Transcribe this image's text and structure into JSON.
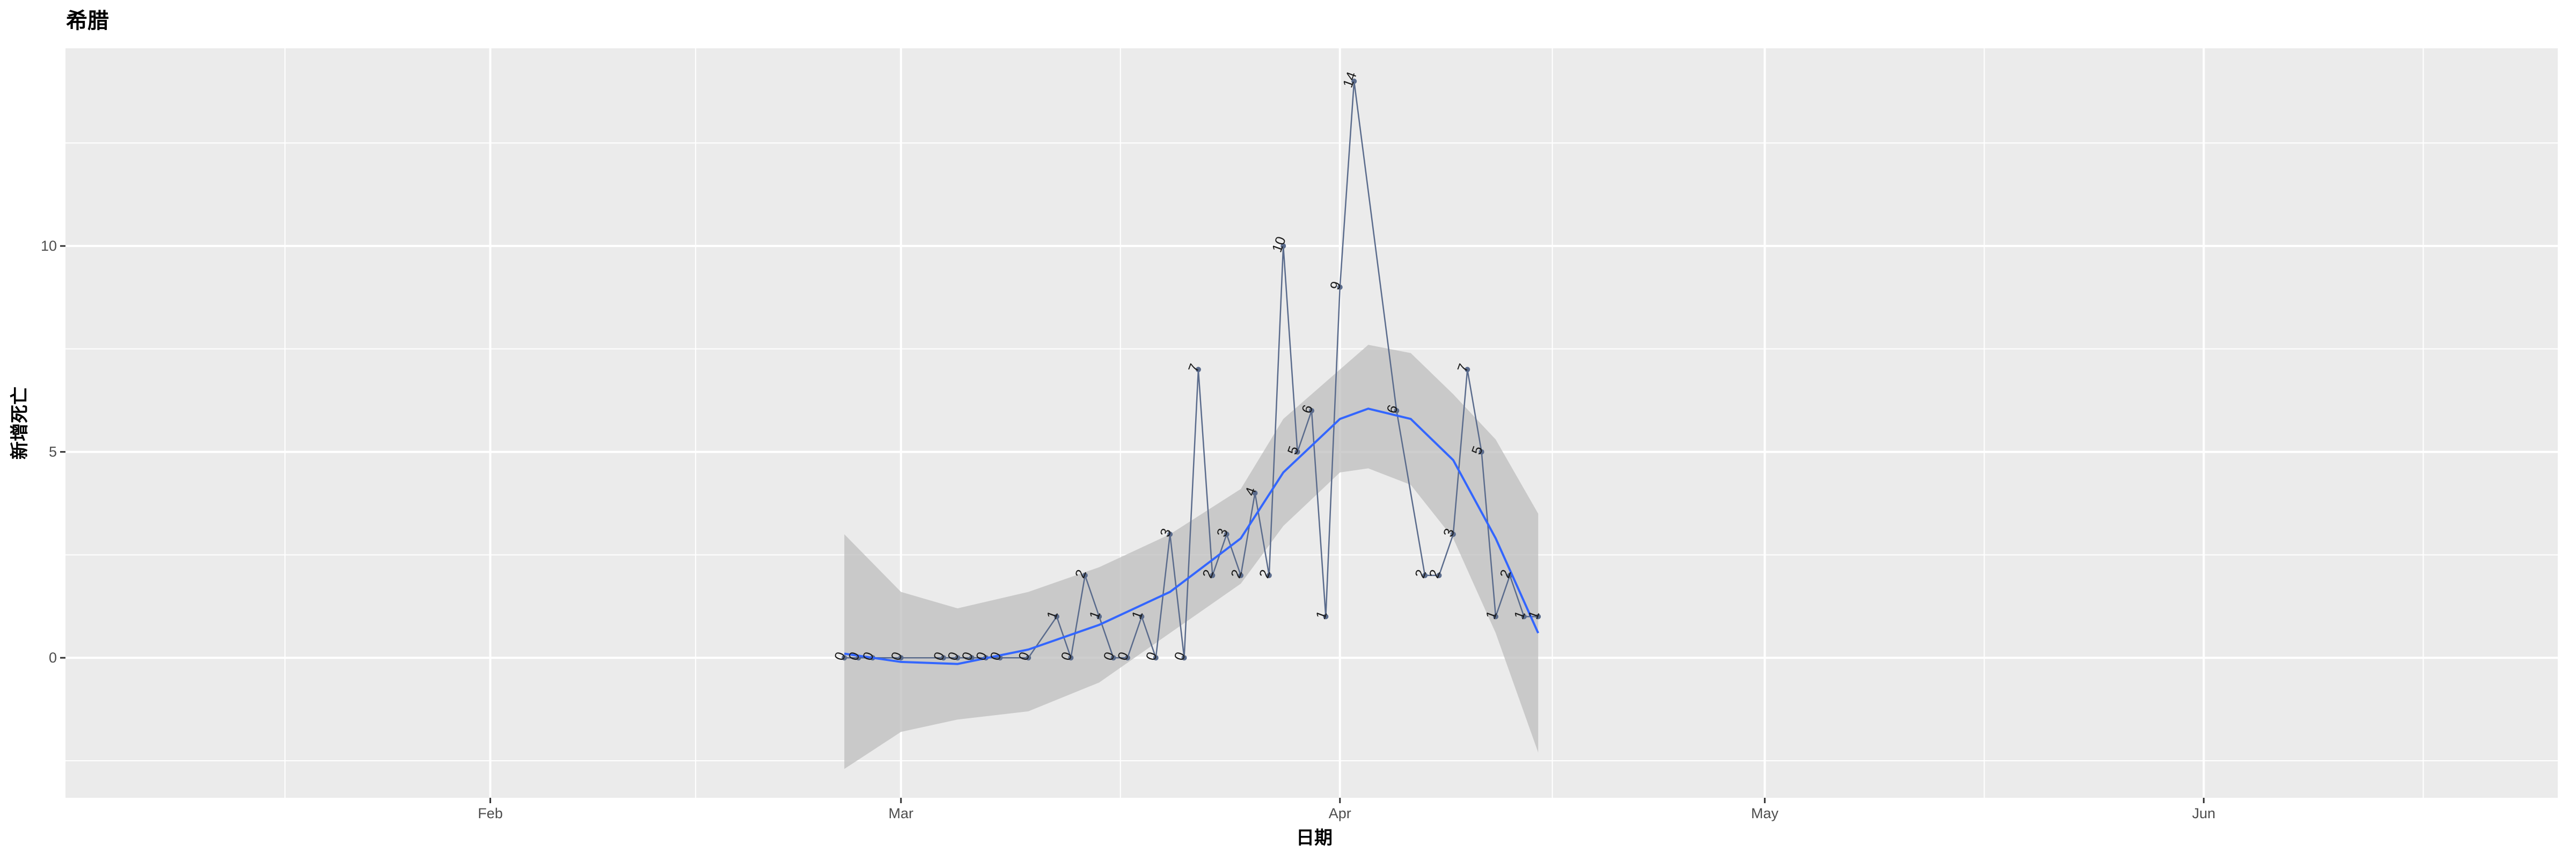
{
  "chart_data": {
    "type": "line",
    "title": "希腊",
    "xlabel": "日期",
    "ylabel": "新增死亡",
    "x_ticks": [
      "Feb",
      "Mar",
      "Apr",
      "May",
      "Jun"
    ],
    "x_tick_dates": [
      "2020-02-01",
      "2020-03-01",
      "2020-04-01",
      "2020-05-01",
      "2020-06-01"
    ],
    "xlim": [
      "2020-01-02",
      "2020-06-26"
    ],
    "y_ticks": [
      0,
      5,
      10
    ],
    "ylim": [
      -3.4,
      14.8
    ],
    "grid": true,
    "colors": {
      "panel": "#ebebeb",
      "grid": "#ffffff",
      "line": "#5a6b8c",
      "smooth": "#3366ff",
      "ribbon": "#bdbdbd"
    },
    "series": [
      {
        "x": [
          "2020-02-26",
          "2020-02-27",
          "2020-02-28",
          "2020-03-01",
          "2020-03-04",
          "2020-03-05",
          "2020-03-06",
          "2020-03-07",
          "2020-03-08",
          "2020-03-10",
          "2020-03-12",
          "2020-03-13",
          "2020-03-14",
          "2020-03-15",
          "2020-03-16",
          "2020-03-17",
          "2020-03-18",
          "2020-03-19",
          "2020-03-20",
          "2020-03-21",
          "2020-03-22",
          "2020-03-23",
          "2020-03-24",
          "2020-03-25",
          "2020-03-26",
          "2020-03-27",
          "2020-03-28",
          "2020-03-29",
          "2020-03-30",
          "2020-03-31",
          "2020-04-01",
          "2020-04-02",
          "2020-04-05",
          "2020-04-07",
          "2020-04-08",
          "2020-04-09",
          "2020-04-10",
          "2020-04-11",
          "2020-04-12",
          "2020-04-13",
          "2020-04-14",
          "2020-04-15"
        ],
        "values": [
          0,
          0,
          0,
          0,
          0,
          0,
          0,
          0,
          0,
          0,
          1,
          0,
          2,
          1,
          0,
          0,
          1,
          0,
          3,
          0,
          7,
          2,
          3,
          2,
          4,
          2,
          10,
          5,
          6,
          1,
          9,
          14,
          6,
          2,
          2,
          3,
          7,
          5,
          1,
          2,
          1,
          1
        ]
      }
    ],
    "smooth": {
      "x": [
        "2020-02-26",
        "2020-03-01",
        "2020-03-05",
        "2020-03-10",
        "2020-03-15",
        "2020-03-20",
        "2020-03-25",
        "2020-03-28",
        "2020-04-01",
        "2020-04-03",
        "2020-04-06",
        "2020-04-09",
        "2020-04-12",
        "2020-04-15"
      ],
      "fit": [
        0.1,
        -0.1,
        -0.15,
        0.2,
        0.8,
        1.6,
        2.9,
        4.5,
        5.8,
        6.05,
        5.8,
        4.8,
        2.9,
        0.6
      ],
      "lower": [
        -2.7,
        -1.8,
        -1.5,
        -1.3,
        -0.6,
        0.6,
        1.8,
        3.2,
        4.5,
        4.6,
        4.2,
        2.9,
        0.6,
        -2.3
      ],
      "upper": [
        3.0,
        1.6,
        1.2,
        1.6,
        2.2,
        3.0,
        4.1,
        5.8,
        7.0,
        7.6,
        7.4,
        6.4,
        5.3,
        3.5
      ]
    }
  }
}
